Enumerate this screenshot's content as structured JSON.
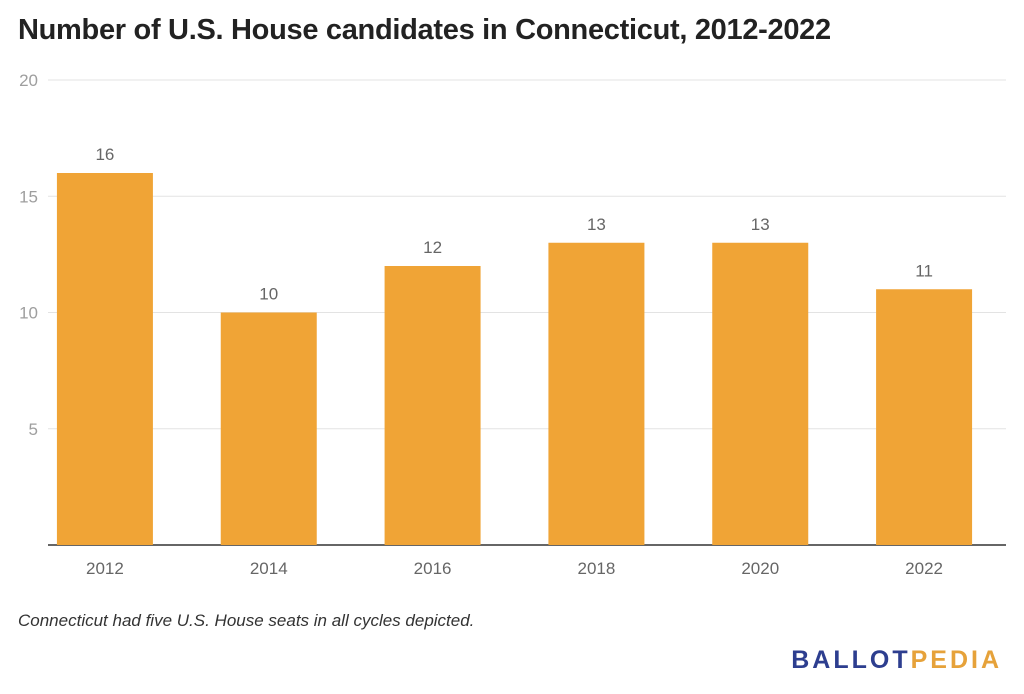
{
  "chart_data": {
    "type": "bar",
    "title": "Number of U.S. House candidates in Connecticut, 2012-2022",
    "categories": [
      "2012",
      "2014",
      "2016",
      "2018",
      "2020",
      "2022"
    ],
    "values": [
      16,
      10,
      12,
      13,
      13,
      11
    ],
    "ylim": [
      0,
      20
    ],
    "yticks": [
      5,
      10,
      15,
      20
    ],
    "grid": true,
    "bar_color": "#f0a436",
    "note": "Connecticut had five U.S. House seats in all cycles depicted."
  },
  "brand": {
    "part1": "BALLOT",
    "part2": "PEDIA"
  }
}
